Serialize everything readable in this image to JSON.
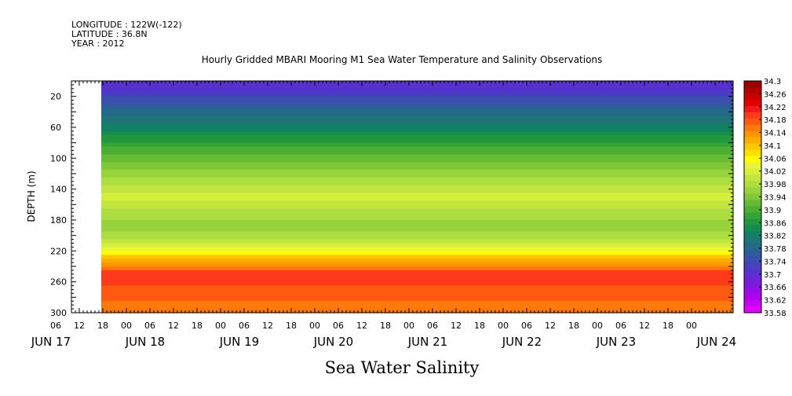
{
  "header": {
    "longitude": "LONGITUDE : 122W(-122)",
    "latitude": "LATITUDE : 36.8N",
    "year": "YEAR : 2012"
  },
  "chart_data": {
    "type": "heatmap",
    "title": "Hourly Gridded MBARI Mooring M1 Sea Water Temperature and Salinity Observations",
    "xlabel": "",
    "ylabel": "DEPTH (m)",
    "bottom_label": "Sea Water Salinity",
    "y_range": [
      0,
      300
    ],
    "y_direction": "depth-increasing-downward",
    "y_ticks": [
      20,
      60,
      100,
      140,
      180,
      220,
      260,
      300
    ],
    "x_hour_ticks": [
      "06",
      "12",
      "18",
      "00",
      "06",
      "12",
      "18",
      "00",
      "06",
      "12",
      "18",
      "00",
      "06",
      "12",
      "18",
      "00",
      "06",
      "12",
      "18",
      "00",
      "06",
      "12",
      "18",
      "00",
      "06",
      "12",
      "18",
      "00"
    ],
    "x_day_labels": [
      "JUN 17",
      "JUN 18",
      "JUN 19",
      "JUN 20",
      "JUN 21",
      "JUN 22",
      "JUN 23",
      "JUN 24"
    ],
    "data_start": "JUN 17 10:00",
    "colorbar": {
      "labels": [
        "34.3",
        "34.26",
        "34.22",
        "34.18",
        "34.14",
        "34.1",
        "34.06",
        "34.02",
        "33.98",
        "33.94",
        "33.9",
        "33.86",
        "33.82",
        "33.78",
        "33.74",
        "33.7",
        "33.66",
        "33.62",
        "33.58"
      ],
      "colors": [
        "#990000",
        "#b00000",
        "#cc0000",
        "#e00000",
        "#f01818",
        "#ff3a1a",
        "#ff5a10",
        "#ff7a0a",
        "#ff9500",
        "#ffae00",
        "#ffc800",
        "#ffe000",
        "#ffff00",
        "#eaf53a",
        "#d6ee3c",
        "#c2e63e",
        "#aedd40",
        "#98d33c",
        "#80c838",
        "#66bb34",
        "#4caf34",
        "#34a438",
        "#22983e",
        "#168c50",
        "#128062",
        "#1e7478",
        "#26688a",
        "#2f5c9c",
        "#3a4fae",
        "#4541c0",
        "#5533cc",
        "#6a26d6",
        "#8018e0",
        "#980cea",
        "#b000f0",
        "#c800f5",
        "#e000ff"
      ]
    },
    "profile": [
      {
        "depth": 10,
        "value": 33.7
      },
      {
        "depth": 30,
        "value": 33.76
      },
      {
        "depth": 50,
        "value": 33.8
      },
      {
        "depth": 70,
        "value": 33.85
      },
      {
        "depth": 90,
        "value": 33.9
      },
      {
        "depth": 110,
        "value": 33.94
      },
      {
        "depth": 130,
        "value": 33.98
      },
      {
        "depth": 150,
        "value": 34.02
      },
      {
        "depth": 170,
        "value": 33.98
      },
      {
        "depth": 190,
        "value": 33.96
      },
      {
        "depth": 210,
        "value": 34.0
      },
      {
        "depth": 230,
        "value": 34.1
      },
      {
        "depth": 250,
        "value": 34.2
      },
      {
        "depth": 270,
        "value": 34.18
      },
      {
        "depth": 290,
        "value": 34.16
      },
      {
        "depth": 300,
        "value": 34.16
      }
    ]
  }
}
